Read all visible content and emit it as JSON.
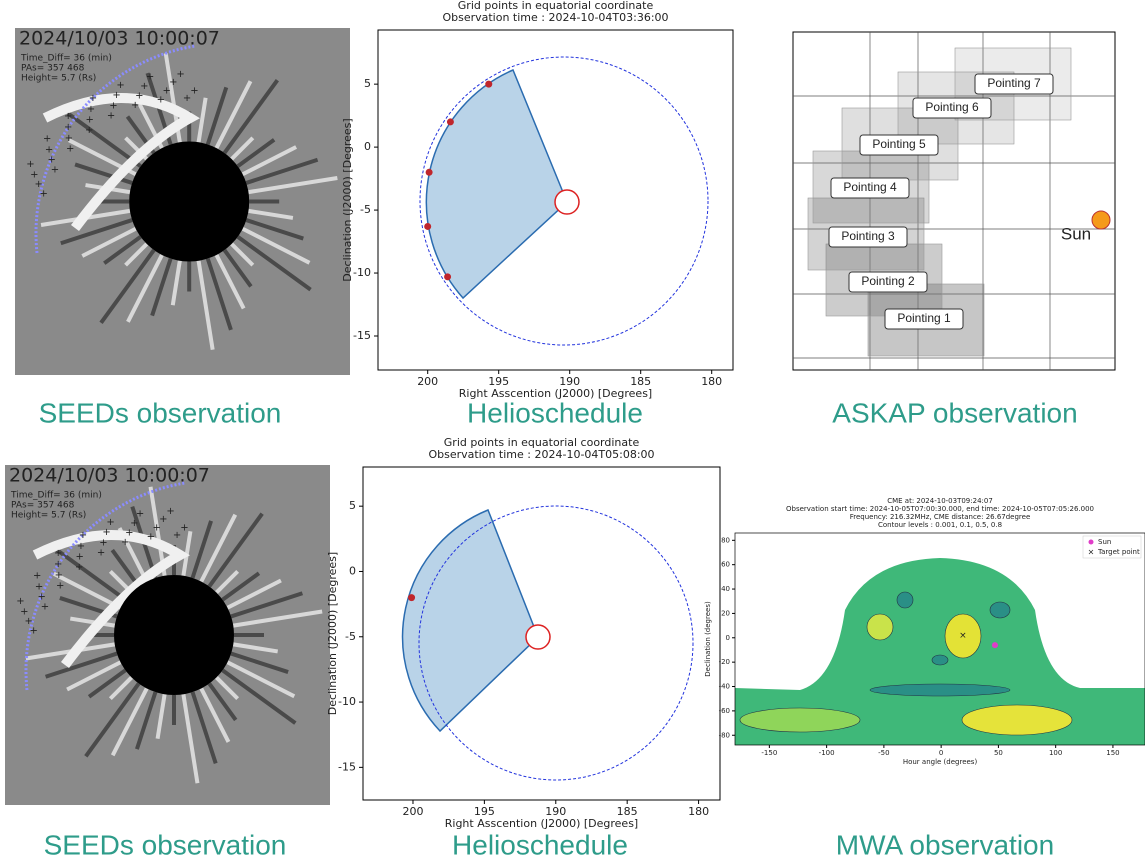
{
  "panels": [
    {
      "caption": "SEEDs observation",
      "timestamp": "2024/10/03 10:00:07",
      "info": [
        "Time_Diff= 36 (min)",
        "PAs= 357 468",
        "Height= 5.7 (Rs)"
      ]
    },
    {
      "caption": "Helioschedule",
      "title": "Grid points in equatorial coordinate",
      "subtitle": "Observation time : 2024-10-04T03:36:00",
      "xlabel": "Right Asscention (J2000) [Degrees]",
      "ylabel": "Declination (J2000) [Degrees]",
      "xlim": [
        203.5,
        178.5
      ],
      "ylim": [
        -17.7,
        9.3
      ],
      "xticks": [
        200,
        195,
        190,
        185,
        180
      ],
      "yticks": [
        5,
        0,
        -5,
        -10,
        -15
      ],
      "points_x": [
        195.7,
        198.4,
        199.9,
        200.0,
        198.6
      ],
      "points_y": [
        5,
        2,
        -2,
        -6.3,
        -10.3
      ]
    },
    {
      "caption": "ASKAP observation",
      "pointings": [
        "Pointing 1",
        "Pointing 2",
        "Pointing 3",
        "Pointing 4",
        "Pointing 5",
        "Pointing 6",
        "Pointing 7"
      ],
      "sun": "Sun"
    },
    {
      "caption": "SEEDs observation",
      "timestamp": "2024/10/03 10:00:07",
      "info": [
        "Time_Diff= 36 (min)",
        "PAs= 357 468",
        "Height= 5.7 (Rs)"
      ]
    },
    {
      "caption": "Helioschedule",
      "title": "Grid points in equatorial coordinate",
      "subtitle": "Observation time : 2024-10-04T05:08:00",
      "xlabel": "Right Asscention (J2000) [Degrees]",
      "ylabel": "Declination (J2000) [Degrees]",
      "xlim": [
        203.5,
        178.5
      ],
      "ylim": [
        -17.5,
        8
      ],
      "xticks": [
        200,
        195,
        190,
        185,
        180
      ],
      "yticks": [
        5,
        0,
        -5,
        -10,
        -15
      ],
      "points_x": [
        200.1
      ],
      "points_y": [
        -2
      ]
    },
    {
      "caption": "MWA observation",
      "title": [
        "CME at: 2024-10-03T09:24:07",
        "Observation start time: 2024-10-05T07:00:30.000, end time: 2024-10-05T07:05:26.000",
        "Frequency: 216.32MHz, CME distance: 26.67degree",
        "Contour levels : 0.001, 0.1, 0.5, 0.8"
      ],
      "xlabel": "Hour angle (degrees)",
      "ylabel": "Declination (degrees)",
      "xlim": [
        -180,
        178
      ],
      "ylim": [
        -88,
        86
      ],
      "xticks": [
        -150,
        -100,
        -50,
        0,
        50,
        100,
        150
      ],
      "yticks": [
        -80,
        -60,
        -40,
        -20,
        0,
        20,
        40,
        60,
        80
      ],
      "legend": [
        "Sun",
        "Target point"
      ],
      "sun_x": 47,
      "sun_y": -6,
      "target_x": 19,
      "target_y": 2
    }
  ]
}
